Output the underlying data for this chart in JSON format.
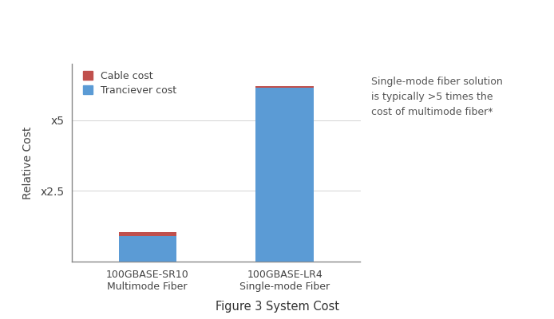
{
  "categories": [
    "100GBASE-SR10\nMultimode Fiber",
    "100GBASE-LR4\nSingle-mode Fiber"
  ],
  "transceiver_values": [
    0.9,
    6.15
  ],
  "cable_values": [
    0.15,
    0.05
  ],
  "bar_color_transceiver": "#5b9bd5",
  "bar_color_cable": "#c0504d",
  "ylabel": "Relative Cost",
  "ytick_positions": [
    2.5,
    5.0
  ],
  "ytick_labels": [
    "x2.5",
    "x5"
  ],
  "ylim": [
    0,
    7.0
  ],
  "legend_labels": [
    "Cable cost",
    "Tranciever cost"
  ],
  "annotation": "Single-mode fiber solution\nis typically >5 times the\ncost of multimode fiber*",
  "caption": "Figure 3 System Cost",
  "background_color": "#ffffff",
  "bar_width": 0.42
}
